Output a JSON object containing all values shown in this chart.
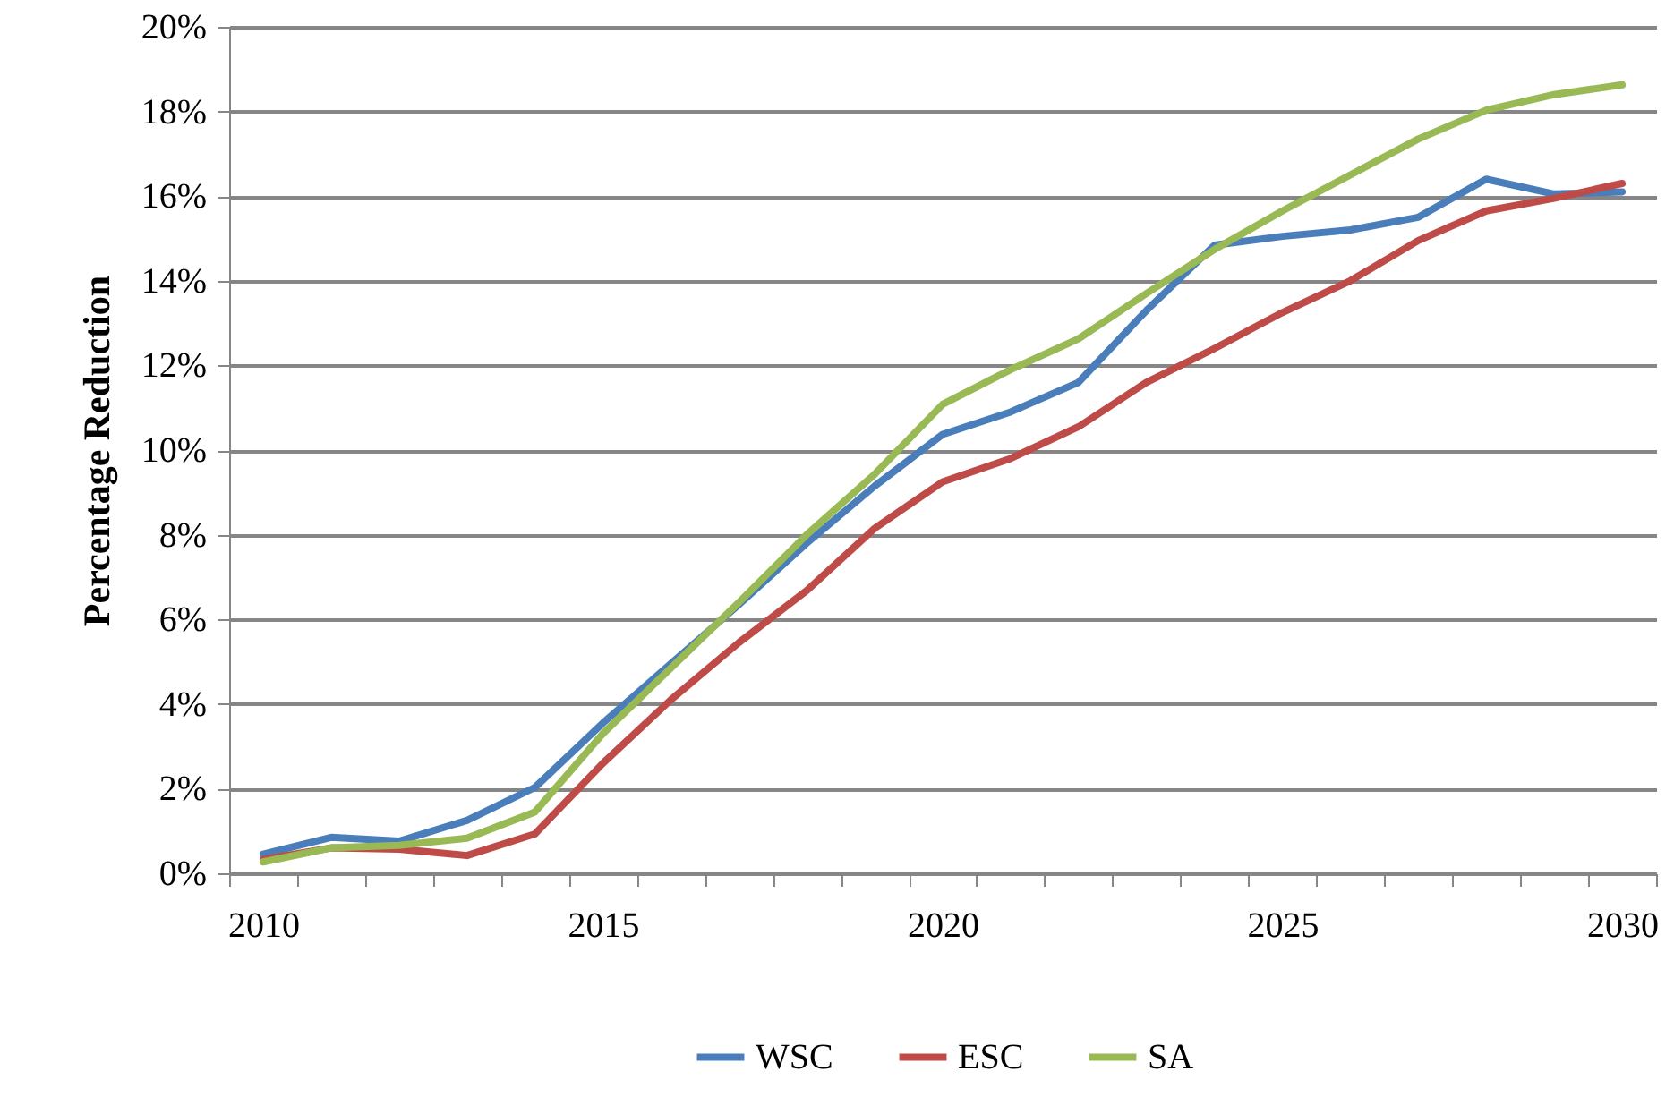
{
  "chart_data": {
    "type": "line",
    "ylabel": "Percentage Reduction",
    "categories": [
      "2010",
      null,
      null,
      null,
      null,
      "2015",
      null,
      null,
      null,
      null,
      "2020",
      null,
      null,
      null,
      null,
      "2025",
      null,
      null,
      null,
      null,
      "2030"
    ],
    "series": [
      {
        "name": "WSC",
        "color": "#4a7ebb",
        "values": [
          0.45,
          0.85,
          0.76,
          1.25,
          2.03,
          3.55,
          4.95,
          6.35,
          7.8,
          9.15,
          10.37,
          10.9,
          11.6,
          13.3,
          14.84,
          15.05,
          15.2,
          15.5,
          16.4,
          16.05,
          16.1
        ]
      },
      {
        "name": "ESC",
        "color": "#be4b48",
        "values": [
          0.33,
          0.6,
          0.57,
          0.42,
          0.93,
          2.6,
          4.1,
          5.45,
          6.68,
          8.15,
          9.25,
          9.8,
          10.55,
          11.6,
          12.4,
          13.25,
          14.0,
          14.95,
          15.65,
          15.95,
          16.3
        ]
      },
      {
        "name": "SA",
        "color": "#98b954",
        "values": [
          0.27,
          0.6,
          0.66,
          0.83,
          1.45,
          3.3,
          4.85,
          6.4,
          8.0,
          9.43,
          11.08,
          11.9,
          12.63,
          13.7,
          14.74,
          15.65,
          16.5,
          17.35,
          18.03,
          18.4,
          18.63
        ]
      }
    ],
    "ylim": [
      0,
      20
    ],
    "yticks": [
      {
        "value": 0,
        "label": "0%"
      },
      {
        "value": 2,
        "label": "2%"
      },
      {
        "value": 4,
        "label": "4%"
      },
      {
        "value": 6,
        "label": "6%"
      },
      {
        "value": 8,
        "label": "8%"
      },
      {
        "value": 10,
        "label": "10%"
      },
      {
        "value": 12,
        "label": "12%"
      },
      {
        "value": 14,
        "label": "14%"
      },
      {
        "value": 16,
        "label": "16%"
      },
      {
        "value": 18,
        "label": "18%"
      },
      {
        "value": 20,
        "label": "20%"
      }
    ],
    "grid": "y",
    "legend": "bottom",
    "marker": "none",
    "line_style": "solid"
  }
}
